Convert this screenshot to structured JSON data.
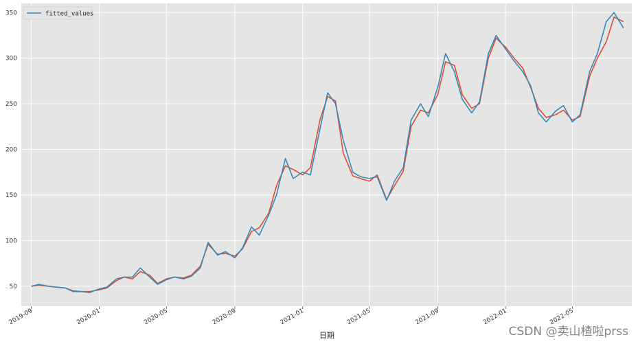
{
  "chart_data": {
    "type": "line",
    "title": "",
    "xlabel": "日期",
    "ylabel": "",
    "ylim": [
      28,
      360
    ],
    "xlim": [
      "2019-08-14",
      "2022-08-16"
    ],
    "grid": true,
    "legend_position": "top-left",
    "x_tick_labels": [
      "2019-09",
      "2020-01",
      "2020-05",
      "2020-09",
      "2021-01",
      "2021-05",
      "2021-09",
      "2022-01",
      "2022-05"
    ],
    "x_tick_dates": [
      "2019-09-01",
      "2020-01-01",
      "2020-05-01",
      "2020-09-01",
      "2021-01-01",
      "2021-05-01",
      "2021-09-01",
      "2022-01-01",
      "2022-05-01"
    ],
    "y_ticks": [
      50,
      100,
      150,
      200,
      250,
      300,
      350
    ],
    "legend": [
      "fitted_values"
    ],
    "series": [
      {
        "name": "",
        "color": "#e24a33",
        "x": [
          "2019-09-01",
          "2019-09-15",
          "2019-10-01",
          "2019-10-15",
          "2019-11-01",
          "2019-11-15",
          "2019-12-01",
          "2019-12-15",
          "2020-01-01",
          "2020-01-15",
          "2020-02-01",
          "2020-02-15",
          "2020-03-01",
          "2020-03-15",
          "2020-04-01",
          "2020-04-15",
          "2020-05-01",
          "2020-05-15",
          "2020-06-01",
          "2020-06-15",
          "2020-07-01",
          "2020-07-15",
          "2020-08-01",
          "2020-08-15",
          "2020-09-01",
          "2020-09-15",
          "2020-10-01",
          "2020-10-15",
          "2020-11-01",
          "2020-11-15",
          "2020-12-01",
          "2020-12-15",
          "2021-01-01",
          "2021-01-15",
          "2021-02-01",
          "2021-02-15",
          "2021-03-01",
          "2021-03-15",
          "2021-04-01",
          "2021-04-15",
          "2021-05-01",
          "2021-05-15",
          "2021-06-01",
          "2021-06-15",
          "2021-07-01",
          "2021-07-15",
          "2021-08-01",
          "2021-08-15",
          "2021-09-01",
          "2021-09-15",
          "2021-10-01",
          "2021-10-15",
          "2021-11-01",
          "2021-11-15",
          "2021-12-01",
          "2021-12-15",
          "2022-01-01",
          "2022-01-15",
          "2022-02-01",
          "2022-02-15",
          "2022-03-01",
          "2022-03-15",
          "2022-04-01",
          "2022-04-15",
          "2022-05-01",
          "2022-05-15",
          "2022-06-01",
          "2022-06-15",
          "2022-07-01",
          "2022-07-15",
          "2022-08-01"
        ],
        "values": [
          50,
          51,
          50,
          49,
          48,
          45,
          44,
          44,
          46,
          48,
          56,
          60,
          58,
          66,
          62,
          53,
          58,
          60,
          59,
          62,
          72,
          96,
          85,
          86,
          83,
          91,
          110,
          114,
          130,
          160,
          182,
          178,
          172,
          180,
          232,
          258,
          253,
          196,
          171,
          168,
          165,
          172,
          145,
          160,
          176,
          225,
          243,
          240,
          260,
          296,
          292,
          260,
          245,
          250,
          300,
          322,
          312,
          301,
          289,
          268,
          245,
          235,
          238,
          243,
          232,
          236,
          280,
          300,
          318,
          345,
          340
        ]
      },
      {
        "name": "fitted_values",
        "color": "#348abd",
        "x": [
          "2019-09-01",
          "2019-09-15",
          "2019-10-01",
          "2019-10-15",
          "2019-11-01",
          "2019-11-15",
          "2019-12-01",
          "2019-12-15",
          "2020-01-01",
          "2020-01-15",
          "2020-02-01",
          "2020-02-15",
          "2020-03-01",
          "2020-03-15",
          "2020-04-01",
          "2020-04-15",
          "2020-05-01",
          "2020-05-15",
          "2020-06-01",
          "2020-06-15",
          "2020-07-01",
          "2020-07-15",
          "2020-08-01",
          "2020-08-15",
          "2020-09-01",
          "2020-09-15",
          "2020-10-01",
          "2020-10-15",
          "2020-11-01",
          "2020-11-15",
          "2020-12-01",
          "2020-12-15",
          "2021-01-01",
          "2021-01-15",
          "2021-02-01",
          "2021-02-15",
          "2021-03-01",
          "2021-03-15",
          "2021-04-01",
          "2021-04-15",
          "2021-05-01",
          "2021-05-15",
          "2021-06-01",
          "2021-06-15",
          "2021-07-01",
          "2021-07-15",
          "2021-08-01",
          "2021-08-15",
          "2021-09-01",
          "2021-09-15",
          "2021-10-01",
          "2021-10-15",
          "2021-11-01",
          "2021-11-15",
          "2021-12-01",
          "2021-12-15",
          "2022-01-01",
          "2022-01-15",
          "2022-02-01",
          "2022-02-15",
          "2022-03-01",
          "2022-03-15",
          "2022-04-01",
          "2022-04-15",
          "2022-05-01",
          "2022-05-15",
          "2022-06-01",
          "2022-06-15",
          "2022-07-01",
          "2022-07-15",
          "2022-08-01"
        ],
        "values": [
          50,
          52,
          50,
          49,
          48,
          44,
          44,
          43,
          47,
          49,
          58,
          60,
          60,
          70,
          60,
          52,
          57,
          60,
          58,
          61,
          70,
          98,
          84,
          88,
          81,
          92,
          115,
          106,
          128,
          150,
          190,
          168,
          175,
          172,
          222,
          262,
          250,
          210,
          175,
          170,
          168,
          170,
          144,
          165,
          180,
          232,
          250,
          236,
          268,
          305,
          285,
          255,
          240,
          252,
          305,
          325,
          310,
          298,
          285,
          270,
          240,
          230,
          242,
          248,
          230,
          238,
          285,
          305,
          340,
          350,
          333
        ]
      }
    ]
  },
  "watermark": "CSDN @卖山楂啦prss"
}
